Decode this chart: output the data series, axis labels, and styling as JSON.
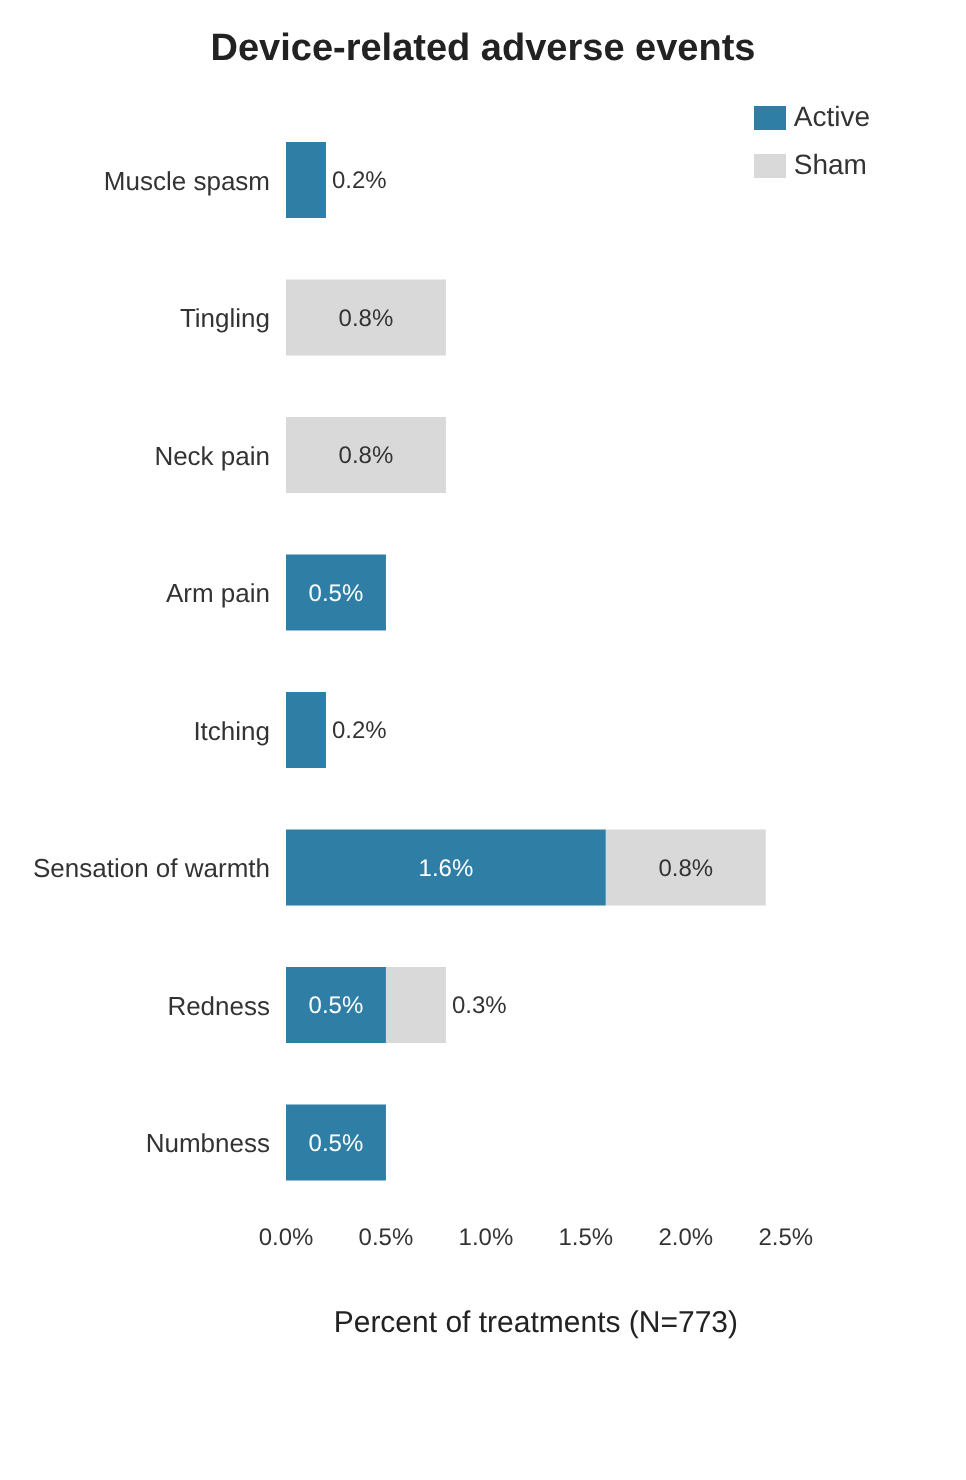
{
  "chart_data": {
    "type": "bar",
    "title": "Device-related adverse events",
    "xlabel": "Percent of treatments (N=773)",
    "orientation": "horizontal",
    "stacked": true,
    "categories": [
      "Muscle spasm",
      "Tingling",
      "Neck pain",
      "Arm pain",
      "Itching",
      "Sensation of warmth",
      "Redness",
      "Numbness"
    ],
    "series": [
      {
        "name": "Active",
        "color": "#2e7ea6",
        "values": [
          0.2,
          null,
          null,
          0.5,
          0.2,
          1.6,
          0.5,
          0.5
        ],
        "value_labels": [
          "0.2%",
          null,
          null,
          "0.5%",
          "0.2%",
          "1.6%",
          "0.5%",
          "0.5%"
        ]
      },
      {
        "name": "Sham",
        "color": "#d9d9d9",
        "values": [
          null,
          0.8,
          0.8,
          null,
          null,
          0.8,
          0.3,
          null
        ],
        "value_labels": [
          null,
          "0.8%",
          "0.8%",
          null,
          null,
          "0.8%",
          "0.3%",
          null
        ]
      }
    ],
    "xlim": [
      0,
      2.5
    ],
    "xticks": [
      {
        "value": 0,
        "label": "0.0%"
      },
      {
        "value": 0.5,
        "label": "0.5%"
      },
      {
        "value": 1,
        "label": "1.0%"
      },
      {
        "value": 1.5,
        "label": "1.5%"
      },
      {
        "value": 2,
        "label": "2.0%"
      },
      {
        "value": 2.5,
        "label": "2.5%"
      }
    ],
    "grid": false,
    "legend": "top right"
  }
}
